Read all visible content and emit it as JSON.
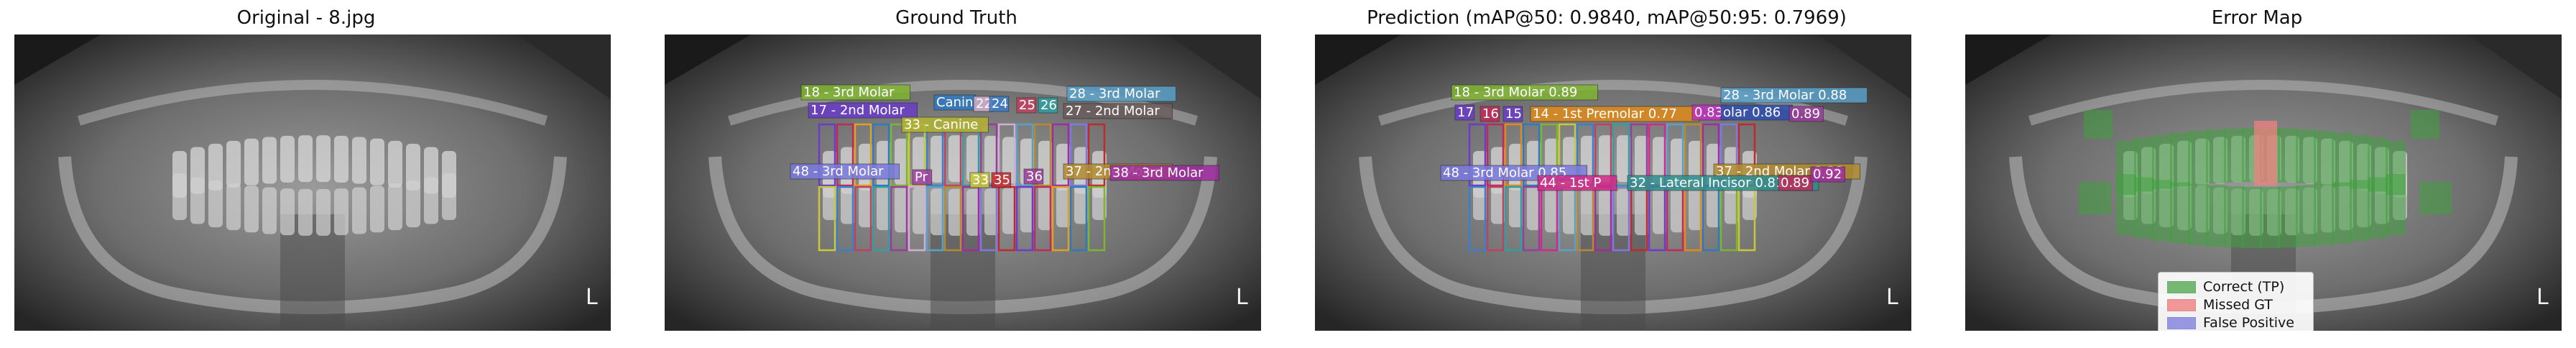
{
  "panels": [
    {
      "id": "original",
      "title": "Original - 8.jpg"
    },
    {
      "id": "gt",
      "title": "Ground Truth"
    },
    {
      "id": "pred",
      "title": "Prediction (mAP@50: 0.9840, mAP@50:95: 0.7969)"
    },
    {
      "id": "error",
      "title": "Error Map"
    }
  ],
  "corner_mark": "L",
  "gt_labels": [
    {
      "text": "18 - 3rd Molar",
      "color": "#7fb431"
    },
    {
      "text": "28 - 3rd Molar",
      "color": "#5aa0c8"
    },
    {
      "text": "17 - 2nd Molar",
      "color": "#6a3cc9"
    },
    {
      "text": "27 - 2nd Molar",
      "color": "#6b5c5c"
    },
    {
      "text": "33 - Canine",
      "color": "#b5b531"
    },
    {
      "text": "48 - 3rd Molar",
      "color": "#7a7adf"
    },
    {
      "text": "37 - 2nd Molar",
      "color": "#b38c2f"
    },
    {
      "text": "38 - 3rd Molar",
      "color": "#a02ca0"
    },
    {
      "text": "Canin",
      "color": "#2f79c2"
    },
    {
      "text": "22",
      "color": "#d0b0d0"
    },
    {
      "text": "24",
      "color": "#3b7fcb"
    },
    {
      "text": "25",
      "color": "#c04060"
    },
    {
      "text": "26",
      "color": "#2f9fa0"
    },
    {
      "text": "36",
      "color": "#9a3c9a"
    },
    {
      "text": "35",
      "color": "#c02a2a"
    },
    {
      "text": "33",
      "color": "#c8c838"
    },
    {
      "text": "Pr",
      "color": "#a040a0"
    }
  ],
  "pred_labels": [
    {
      "text": "18 - 3rd Molar 0.89",
      "color": "#7fb431"
    },
    {
      "text": "28 - 3rd Molar 0.88",
      "color": "#5aa0c8"
    },
    {
      "text": "14 - 1st Premolar 0.77",
      "color": "#e08a1a"
    },
    {
      "text": "olar 0.86",
      "color": "#2f4fb0"
    },
    {
      "text": "0.83",
      "color": "#c030c0"
    },
    {
      "text": "0.89",
      "color": "#9a3c9a"
    },
    {
      "text": "48 - 3rd Molar 0.85",
      "color": "#7a7adf"
    },
    {
      "text": "44 - 1st P",
      "color": "#d02a8a"
    },
    {
      "text": "37 - 2nd Molar 0.86",
      "color": "#b38c2f"
    },
    {
      "text": "32 - Lateral Incisor 0.81",
      "color": "#2f8f8f"
    },
    {
      "text": "0.92",
      "color": "#a02ca0"
    },
    {
      "text": "0.89",
      "color": "#c02a5a"
    },
    {
      "text": "16",
      "color": "#c02a5a"
    },
    {
      "text": "15",
      "color": "#6a3cc9"
    },
    {
      "text": "17",
      "color": "#6a3cc9"
    }
  ],
  "legend": [
    {
      "label": "Correct (TP)",
      "color": "#3fa03f"
    },
    {
      "label": "Missed GT",
      "color": "#f08080"
    },
    {
      "label": "False Positive",
      "color": "#8080e0"
    }
  ]
}
